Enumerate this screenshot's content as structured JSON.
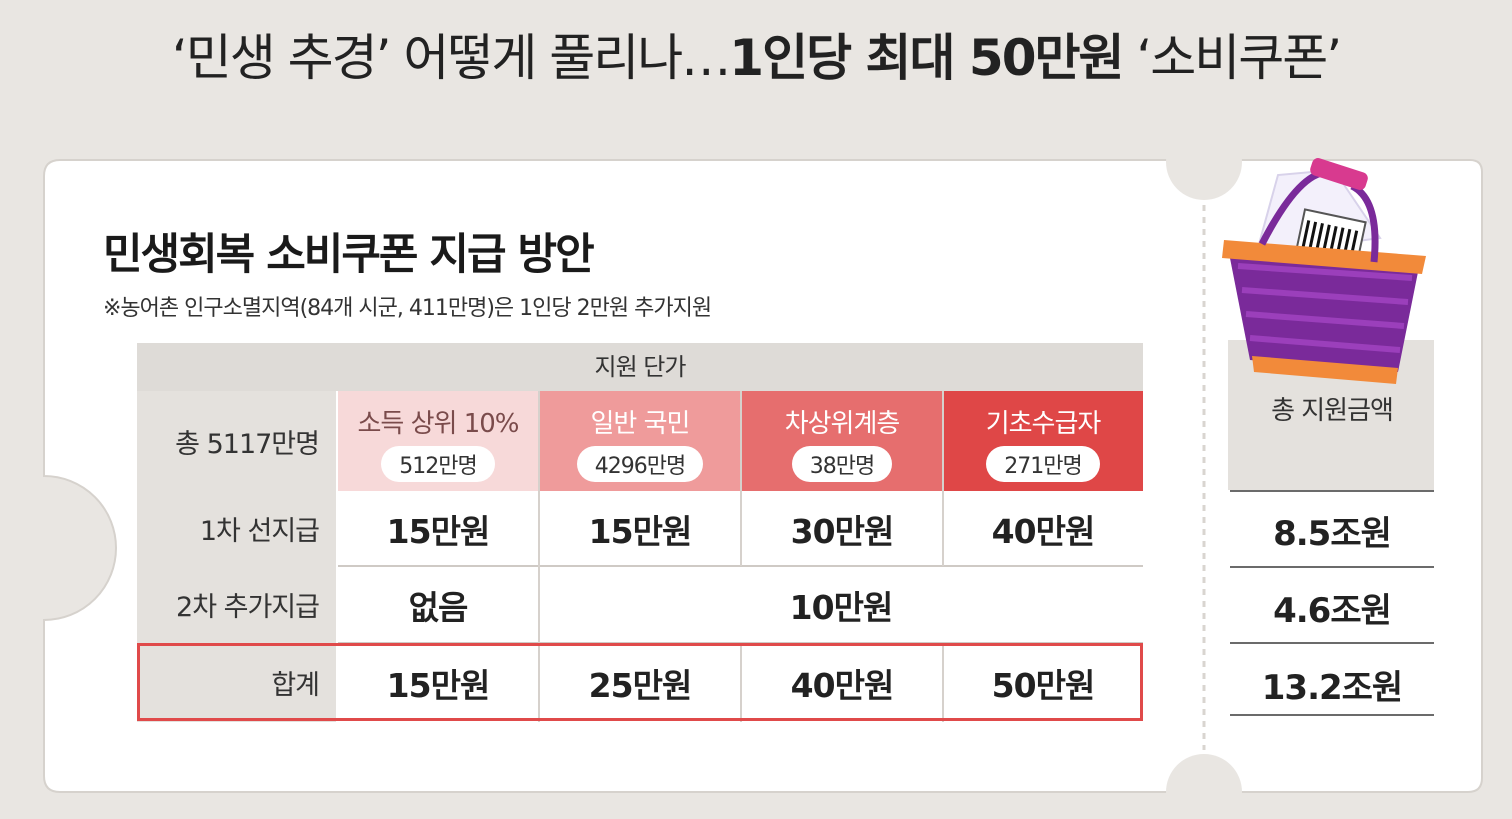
{
  "headline": {
    "part1": "‘민생 추경’ 어떻게 풀리나…",
    "part2": "1인당 최대 50만원",
    "part3": " ‘소비쿠폰’"
  },
  "card": {
    "title": "민생회복 소비쿠폰 지급 방안",
    "note": "※농어촌 인구소멸지역(84개 시군, 411만명)은 1인당 2만원 추가지원"
  },
  "table": {
    "header": "지원 단가",
    "total_population": "총 5117만명",
    "groups": [
      {
        "name": "소득 상위 10%",
        "count": "512만명",
        "color": "#f7d9d9"
      },
      {
        "name": "일반 국민",
        "count": "4296만명",
        "color": "#ef9b9b"
      },
      {
        "name": "차상위계층",
        "count": "38만명",
        "color": "#e66e6e"
      },
      {
        "name": "기초수급자",
        "count": "271만명",
        "color": "#df4747"
      }
    ],
    "rows": {
      "first": {
        "label": "1차 선지급",
        "values": [
          "15만원",
          "15만원",
          "30만원",
          "40만원"
        ]
      },
      "second": {
        "label": "2차 추가지급",
        "none": "없음",
        "merged": "10만원"
      },
      "sum": {
        "label": "합계",
        "values": [
          "15만원",
          "25만원",
          "40만원",
          "50만원"
        ]
      }
    }
  },
  "side": {
    "title": "총 지원금액",
    "values": [
      "8.5조원",
      "4.6조원",
      "13.2조원"
    ]
  },
  "illustration": {
    "icon": "shopping-basket-with-barcode-icon"
  },
  "colors": {
    "accent_red": "#e04a4a",
    "basket_purple": "#7a2a9a",
    "basket_orange": "#f28a3a"
  }
}
